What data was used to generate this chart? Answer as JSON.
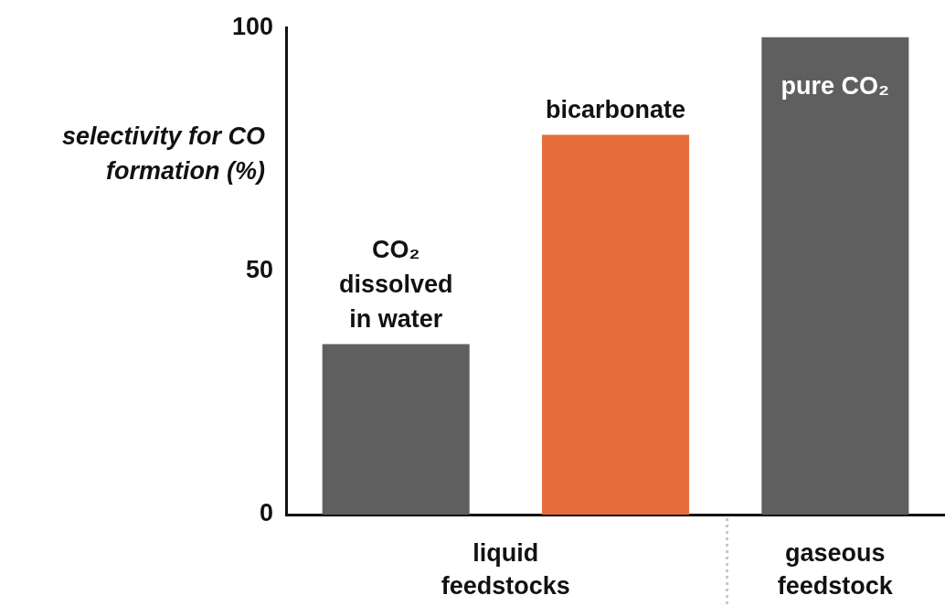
{
  "chart_data": {
    "type": "bar",
    "ylabel": "selectivity for CO formation (%)",
    "categories": [
      "CO₂ dissolved in water",
      "bicarbonate",
      "pure CO₂"
    ],
    "values": [
      35,
      78,
      98
    ],
    "colors": [
      "#5f5f5f",
      "#e76d3b",
      "#5f5f5f"
    ],
    "ylim": [
      0,
      100
    ],
    "yticks": [
      0,
      50,
      100
    ],
    "grid": false,
    "legend": false,
    "annotations": [
      "liquid feedstocks",
      "gaseous feedstock"
    ]
  }
}
